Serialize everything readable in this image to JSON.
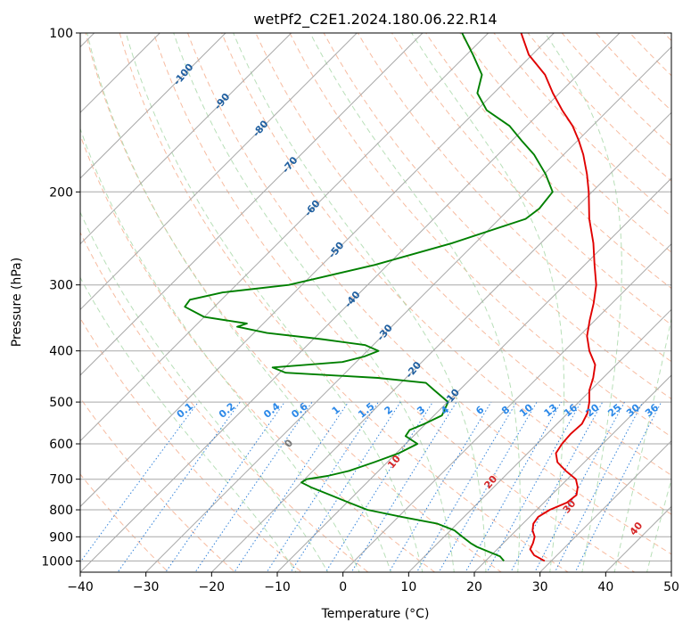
{
  "chart_data": {
    "type": "line",
    "title": "wetPf2_C2E1.2024.180.06.22.R14",
    "xlabel": "Temperature (°C)",
    "ylabel": "Pressure (hPa)",
    "xlim": [
      -40,
      50
    ],
    "ylim": [
      1050,
      100
    ],
    "y_scale": "log",
    "grid": true,
    "x_ticks": [
      -40,
      -30,
      -20,
      -10,
      0,
      10,
      20,
      30,
      40,
      50
    ],
    "y_ticks": [
      100,
      200,
      300,
      400,
      500,
      600,
      700,
      800,
      900,
      1000
    ],
    "x_tick_labels": [
      "−40",
      "−30",
      "−20",
      "−10",
      "0",
      "10",
      "20",
      "30",
      "40",
      "50"
    ],
    "y_tick_labels": [
      "100",
      "200",
      "300",
      "400",
      "500",
      "600",
      "700",
      "800",
      "900",
      "1000"
    ],
    "series": [
      {
        "color": "#e00000",
        "pressure": [
          1000,
          975,
          950,
          925,
          900,
          875,
          850,
          825,
          800,
          775,
          750,
          725,
          700,
          675,
          650,
          625,
          600,
          575,
          550,
          525,
          500,
          475,
          450,
          425,
          400,
          375,
          350,
          325,
          300,
          275,
          250,
          225,
          200,
          185,
          170,
          160,
          150,
          140,
          130,
          120,
          110,
          100
        ],
        "temperature": [
          29.0,
          26.5,
          25.0,
          24.5,
          23.8,
          22.5,
          21.6,
          21.3,
          22.0,
          23.5,
          23.8,
          22.8,
          21.3,
          18.5,
          15.9,
          14.3,
          13.8,
          13.6,
          13.8,
          13.0,
          11.6,
          9.8,
          8.5,
          6.8,
          3.8,
          1.2,
          -0.8,
          -2.8,
          -5.2,
          -8.5,
          -12.0,
          -16.3,
          -20.5,
          -23.5,
          -27.0,
          -29.8,
          -33.0,
          -37.0,
          -41.0,
          -45.0,
          -50.5,
          -55.0
        ]
      },
      {
        "color": "#008000",
        "pressure": [
          1000,
          980,
          960,
          940,
          925,
          900,
          875,
          850,
          825,
          800,
          775,
          750,
          725,
          710,
          700,
          690,
          675,
          660,
          650,
          625,
          600,
          580,
          565,
          550,
          530,
          500,
          475,
          460,
          450,
          440,
          430,
          420,
          410,
          400,
          390,
          380,
          370,
          360,
          355,
          345,
          330,
          320,
          310,
          300,
          275,
          250,
          225,
          215,
          200,
          185,
          170,
          160,
          150,
          140,
          130,
          120,
          110,
          100
        ],
        "temperature": [
          22.8,
          21.5,
          19.0,
          16.5,
          15.0,
          12.8,
          10.6,
          7.0,
          0.5,
          -5.8,
          -9.7,
          -13.7,
          -17.8,
          -20.0,
          -19.7,
          -17.0,
          -14.5,
          -13.0,
          -12.0,
          -9.6,
          -8.2,
          -11.2,
          -11.5,
          -10.2,
          -8.8,
          -9.9,
          -13.8,
          -16.2,
          -24.3,
          -39.1,
          -41.9,
          -32.1,
          -29.6,
          -28.3,
          -31.2,
          -38.8,
          -48.0,
          -53.5,
          -52.5,
          -60.0,
          -64.5,
          -64.8,
          -60.9,
          -52.0,
          -42.0,
          -33.5,
          -26.0,
          -25.5,
          -26.0,
          -29.8,
          -34.5,
          -38.5,
          -42.6,
          -48.5,
          -52.5,
          -54.6,
          -59.0,
          -64.0
        ]
      }
    ],
    "mixing_ratio_labels": [
      "0.1",
      "0.2",
      "0.4",
      "0.6",
      "1",
      "1.5",
      "2",
      "3",
      "4",
      "6",
      "8",
      "10",
      "13",
      "16",
      "20",
      "25",
      "30",
      "36"
    ],
    "mixing_ratio_values": [
      0.1,
      0.2,
      0.4,
      0.6,
      1,
      1.5,
      2,
      3,
      4,
      6,
      8,
      10,
      13,
      16,
      20,
      25,
      30,
      36
    ],
    "dry_adiabat_labels": [
      "-100",
      "-90",
      "-80",
      "-70",
      "-60",
      "-50",
      "-40",
      "-30",
      "-20",
      "-10"
    ],
    "dry_adiabat_values": [
      -100,
      -90,
      -80,
      -70,
      -60,
      -50,
      -40,
      -30,
      -20,
      -10
    ],
    "moist_adiabat_labels": [
      "0",
      "10",
      "20",
      "30",
      "40"
    ],
    "moist_adiabat_values": [
      0,
      10,
      20,
      30,
      40
    ],
    "colors": {
      "isotherm": "#a8a8a8",
      "isobar": "#a8a8a8",
      "dry_adiabat": "#f4a582",
      "moist_adiabat": "#a6d7a6",
      "mixing_ratio": "#1f77d6",
      "dry_label": "#1f5fa0",
      "moist_label": "#d62728",
      "mixing_label": "#2b88e8",
      "zero_label": "#777777"
    }
  }
}
